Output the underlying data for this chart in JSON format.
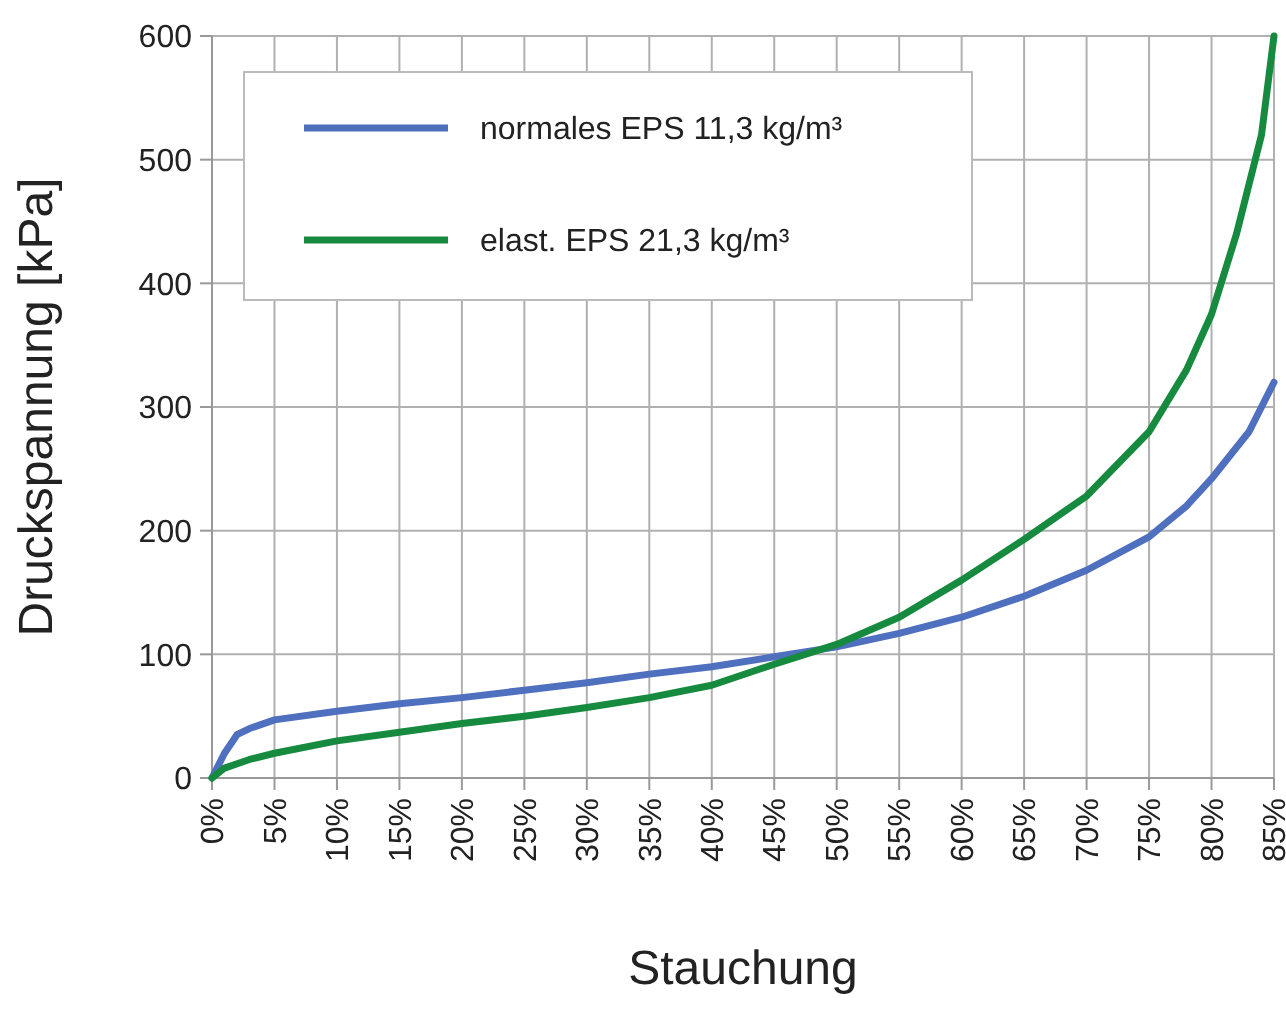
{
  "chart_data": {
    "type": "line",
    "xlabel": "Stauchung",
    "ylabel": "Druckspannung [kPa]",
    "xlim": [
      0,
      85
    ],
    "ylim": [
      0,
      600
    ],
    "xticks": [
      {
        "value": 0,
        "label": "0%"
      },
      {
        "value": 5,
        "label": "5%"
      },
      {
        "value": 10,
        "label": "10%"
      },
      {
        "value": 15,
        "label": "15%"
      },
      {
        "value": 20,
        "label": "20%"
      },
      {
        "value": 25,
        "label": "25%"
      },
      {
        "value": 30,
        "label": "30%"
      },
      {
        "value": 35,
        "label": "35%"
      },
      {
        "value": 40,
        "label": "40%"
      },
      {
        "value": 45,
        "label": "45%"
      },
      {
        "value": 50,
        "label": "50%"
      },
      {
        "value": 55,
        "label": "55%"
      },
      {
        "value": 60,
        "label": "60%"
      },
      {
        "value": 65,
        "label": "65%"
      },
      {
        "value": 70,
        "label": "70%"
      },
      {
        "value": 75,
        "label": "75%"
      },
      {
        "value": 80,
        "label": "80%"
      },
      {
        "value": 85,
        "label": "85%"
      }
    ],
    "yticks": [
      0,
      100,
      200,
      300,
      400,
      500,
      600
    ],
    "grid": true,
    "legend": "top left",
    "marker": "none",
    "line_style": "solid",
    "series": [
      {
        "name": "normales EPS 11,3 kg/m³",
        "color": "#4f6fbf",
        "x": [
          0,
          1,
          2,
          3,
          5,
          10,
          15,
          20,
          25,
          30,
          35,
          40,
          45,
          50,
          55,
          60,
          65,
          70,
          75,
          78,
          80,
          83,
          84,
          85
        ],
        "values": [
          0,
          20,
          35,
          40,
          47,
          54,
          60,
          65,
          71,
          77,
          84,
          90,
          98,
          106,
          117,
          130,
          147,
          168,
          195,
          220,
          242,
          280,
          300,
          320
        ]
      },
      {
        "name": "elast. EPS 21,3 kg/m³",
        "color": "#168a3e",
        "x": [
          0,
          1,
          3,
          5,
          10,
          15,
          20,
          25,
          30,
          35,
          40,
          45,
          50,
          55,
          60,
          65,
          70,
          75,
          78,
          80,
          82,
          84,
          85
        ],
        "values": [
          0,
          8,
          15,
          20,
          30,
          37,
          44,
          50,
          57,
          65,
          75,
          92,
          108,
          130,
          160,
          193,
          228,
          280,
          330,
          375,
          440,
          520,
          600
        ]
      }
    ]
  }
}
